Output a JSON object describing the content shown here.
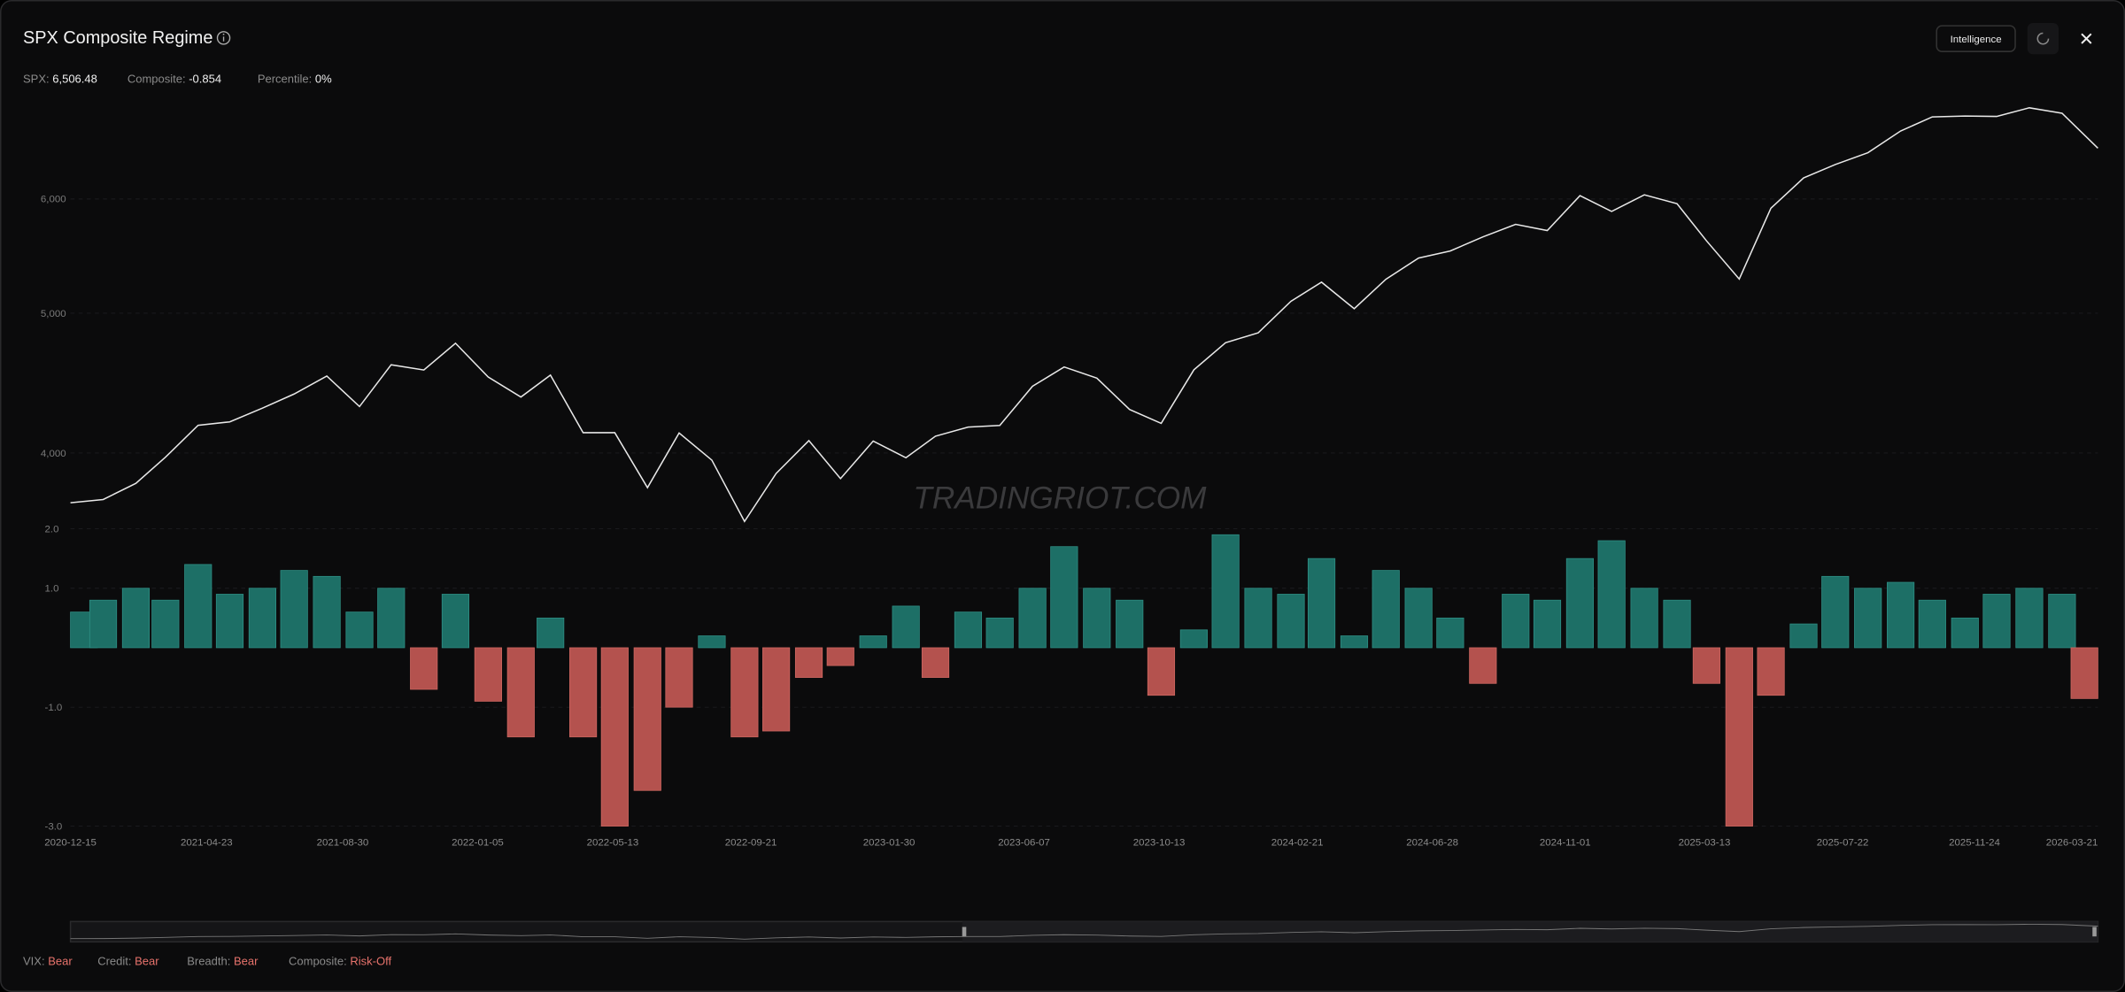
{
  "header": {
    "title": "SPX Composite Regime",
    "button": "Intelligence",
    "stats": [
      {
        "label": "SPX:",
        "value": "6,506.48"
      },
      {
        "label": "Composite:",
        "value": "-0.854"
      },
      {
        "label": "Percentile:",
        "value": "0%"
      }
    ]
  },
  "watermark": "TRADINGRIOT.COM",
  "footer": [
    {
      "label": "VIX:",
      "value": "Bear"
    },
    {
      "label": "Credit:",
      "value": "Bear"
    },
    {
      "label": "Breadth:",
      "value": "Bear"
    },
    {
      "label": "Composite:",
      "value": "Risk-Off"
    }
  ],
  "chart_data": [
    {
      "type": "line",
      "log_scale": true,
      "grid": true,
      "color": "#e8e8e8",
      "x": [
        "2020-12-15",
        "2021-01-15",
        "2021-02-15",
        "2021-03-15",
        "2021-04-15",
        "2021-05-15",
        "2021-06-15",
        "2021-07-15",
        "2021-08-15",
        "2021-09-15",
        "2021-10-15",
        "2021-11-15",
        "2021-12-15",
        "2022-01-15",
        "2022-02-15",
        "2022-03-15",
        "2022-04-15",
        "2022-05-15",
        "2022-06-15",
        "2022-07-15",
        "2022-08-15",
        "2022-09-15",
        "2022-10-15",
        "2022-11-15",
        "2022-12-15",
        "2023-01-15",
        "2023-02-15",
        "2023-03-15",
        "2023-04-15",
        "2023-05-15",
        "2023-06-15",
        "2023-07-15",
        "2023-08-15",
        "2023-09-15",
        "2023-10-15",
        "2023-11-15",
        "2023-12-15",
        "2024-01-15",
        "2024-02-15",
        "2024-03-15",
        "2024-04-15",
        "2024-05-15",
        "2024-06-15",
        "2024-07-15",
        "2024-08-15",
        "2024-09-15",
        "2024-10-15",
        "2024-11-15",
        "2024-12-15",
        "2025-01-15",
        "2025-02-15",
        "2025-03-15",
        "2025-04-15",
        "2025-05-15",
        "2025-06-15",
        "2025-07-15",
        "2025-08-15",
        "2025-09-15",
        "2025-10-15",
        "2025-11-15",
        "2025-12-15",
        "2026-01-15",
        "2026-02-15",
        "2026-03-21"
      ],
      "values": [
        3695,
        3714,
        3811,
        3973,
        4181,
        4204,
        4297,
        4395,
        4523,
        4308,
        4605,
        4567,
        4766,
        4516,
        4374,
        4530,
        4132,
        4132,
        3785,
        4130,
        3955,
        3586,
        3872,
        4080,
        3840,
        4077,
        3970,
        4109,
        4169,
        4180,
        4450,
        4589,
        4508,
        4288,
        4194,
        4568,
        4770,
        4846,
        5096,
        5254,
        5036,
        5278,
        5460,
        5522,
        5648,
        5762,
        5705,
        6032,
        5882,
        6040,
        5955,
        5612,
        5280,
        5912,
        6205,
        6339,
        6460,
        6688,
        6840,
        6849,
        6845,
        6940,
        6880,
        6506.48
      ],
      "xlim": [
        "2020-12-15",
        "2026-03-21"
      ],
      "ylim": [
        3600,
        7100
      ],
      "yticks": [
        {
          "value": 4000,
          "label": "4,000"
        },
        {
          "value": 5000,
          "label": "5,000"
        },
        {
          "value": 6000,
          "label": "6,000"
        }
      ]
    },
    {
      "type": "bar",
      "grid": true,
      "color": "#1d6f66",
      "negative_color": "#b4524e",
      "x": [
        "2020-12-15",
        "2021-01-15",
        "2021-02-15",
        "2021-03-15",
        "2021-04-15",
        "2021-05-15",
        "2021-06-15",
        "2021-07-15",
        "2021-08-15",
        "2021-09-15",
        "2021-10-15",
        "2021-11-15",
        "2021-12-15",
        "2022-01-15",
        "2022-02-15",
        "2022-03-15",
        "2022-04-15",
        "2022-05-15",
        "2022-06-15",
        "2022-07-15",
        "2022-08-15",
        "2022-09-15",
        "2022-10-15",
        "2022-11-15",
        "2022-12-15",
        "2023-01-15",
        "2023-02-15",
        "2023-03-15",
        "2023-04-15",
        "2023-05-15",
        "2023-06-15",
        "2023-07-15",
        "2023-08-15",
        "2023-09-15",
        "2023-10-15",
        "2023-11-15",
        "2023-12-15",
        "2024-01-15",
        "2024-02-15",
        "2024-03-15",
        "2024-04-15",
        "2024-05-15",
        "2024-06-15",
        "2024-07-15",
        "2024-08-15",
        "2024-09-15",
        "2024-10-15",
        "2024-11-15",
        "2024-12-15",
        "2025-01-15",
        "2025-02-15",
        "2025-03-15",
        "2025-04-15",
        "2025-05-15",
        "2025-06-15",
        "2025-07-15",
        "2025-08-15",
        "2025-09-15",
        "2025-10-15",
        "2025-11-15",
        "2025-12-15",
        "2026-01-15",
        "2026-02-15",
        "2026-03-21"
      ],
      "values": [
        0.6,
        0.8,
        1.0,
        0.8,
        1.4,
        0.9,
        1.0,
        1.3,
        1.2,
        0.6,
        1.0,
        -0.7,
        0.9,
        -0.9,
        -1.5,
        0.5,
        -1.5,
        -3.0,
        -2.4,
        -1.0,
        0.2,
        -1.5,
        -1.4,
        -0.5,
        -0.3,
        0.2,
        0.7,
        -0.5,
        0.6,
        0.5,
        1.0,
        1.7,
        1.0,
        0.8,
        -0.8,
        0.3,
        1.9,
        1.0,
        0.9,
        1.5,
        0.2,
        1.3,
        1.0,
        0.5,
        -0.6,
        0.9,
        0.8,
        1.5,
        1.8,
        1.0,
        0.8,
        -0.6,
        -3.0,
        -0.8,
        0.4,
        1.2,
        1.0,
        1.1,
        0.8,
        0.5,
        0.9,
        1.0,
        0.9,
        -0.854
      ],
      "xlim": [
        "2020-12-15",
        "2026-03-21"
      ],
      "xticks": [
        "2020-12-15",
        "2021-04-23",
        "2021-08-30",
        "2022-01-05",
        "2022-05-13",
        "2022-09-21",
        "2023-01-30",
        "2023-06-07",
        "2023-10-13",
        "2024-02-21",
        "2024-06-28",
        "2024-11-01",
        "2025-03-13",
        "2025-07-22",
        "2025-11-24",
        "2026-03-21"
      ],
      "ylim": [
        -3.1,
        2.05
      ],
      "yticks": [
        {
          "value": 2,
          "label": "2.0"
        },
        {
          "value": 1,
          "label": "1.0"
        },
        {
          "value": -1,
          "label": "-1.0"
        },
        {
          "value": -3,
          "label": "-3.0"
        }
      ]
    }
  ]
}
